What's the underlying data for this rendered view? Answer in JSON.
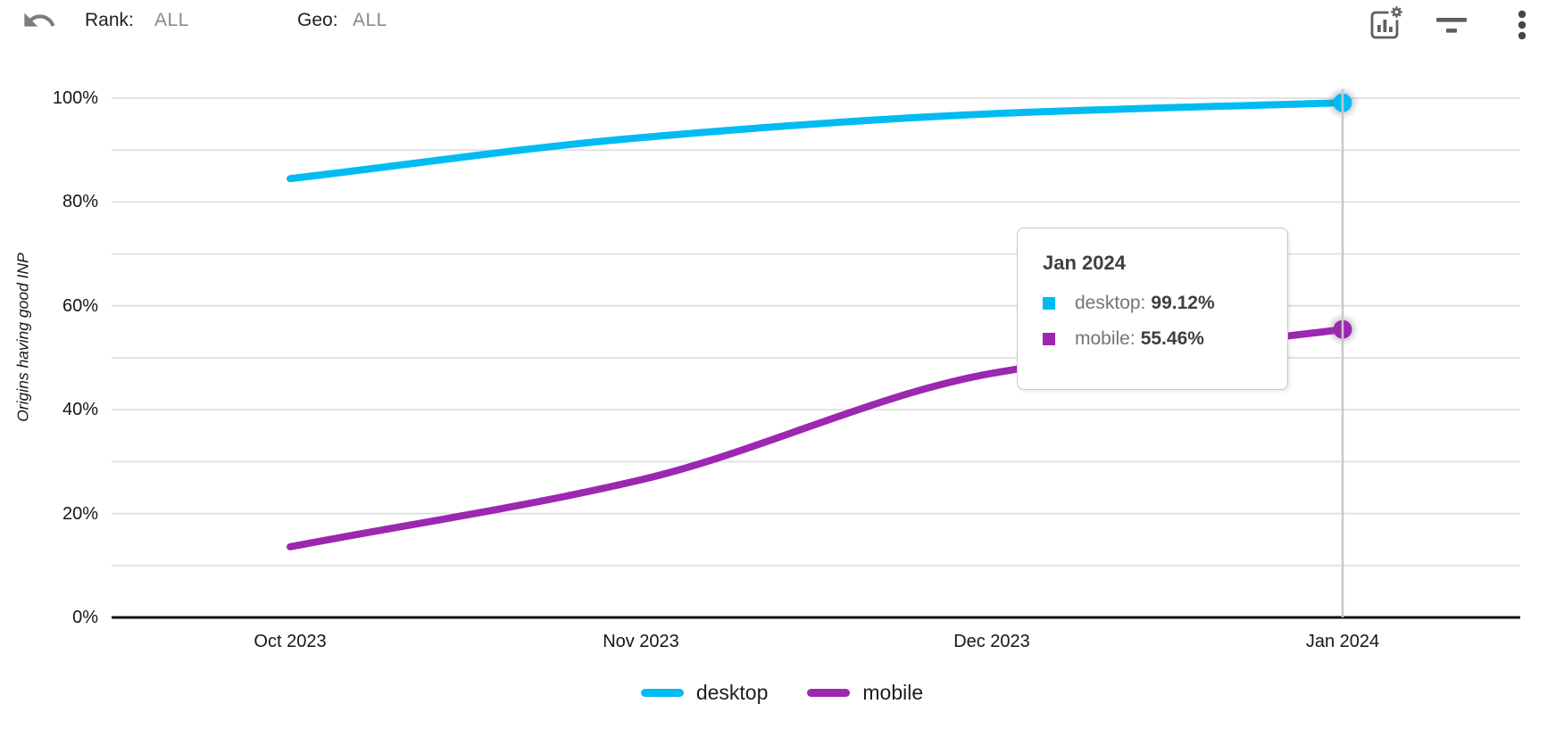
{
  "toolbar": {
    "filters": [
      {
        "label": "Rank:",
        "value": "ALL"
      },
      {
        "label": "Geo:",
        "value": "ALL"
      }
    ],
    "actions": {
      "undo": "undo",
      "chart_settings": "chart-settings",
      "filter": "filter",
      "more": "more-options"
    }
  },
  "chart_data": {
    "type": "line",
    "title": "",
    "xlabel": "",
    "ylabel": "Origins having good INP",
    "categories": [
      "Oct 2023",
      "Nov 2023",
      "Dec 2023",
      "Jan 2024"
    ],
    "series": [
      {
        "name": "desktop",
        "color": "#00bcf2",
        "values": [
          84.5,
          92.4,
          97.0,
          99.12
        ]
      },
      {
        "name": "mobile",
        "color": "#9c27b0",
        "values": [
          13.6,
          26.5,
          47.0,
          55.46
        ]
      }
    ],
    "ylim": [
      0,
      100
    ],
    "y_ticks": [
      "100%",
      "80%",
      "60%",
      "40%",
      "20%",
      "0%"
    ],
    "y_tick_values": [
      100,
      80,
      60,
      40,
      20,
      0
    ],
    "grid": true,
    "legend_position": "bottom",
    "highlight": {
      "category": "Jan 2024",
      "index": 3,
      "crosshair": true
    }
  },
  "tooltip": {
    "title": "Jan 2024",
    "rows": [
      {
        "label": "desktop:",
        "value": "99.12%",
        "color": "#00bcf2"
      },
      {
        "label": "mobile:",
        "value": "55.46%",
        "color": "#9c27b0"
      }
    ]
  },
  "legend": {
    "items": [
      {
        "label": "desktop",
        "color": "#00bcf2"
      },
      {
        "label": "mobile",
        "color": "#9c27b0"
      }
    ]
  },
  "colors": {
    "gridline": "#e2e2e2",
    "axis": "#111111",
    "crosshair": "#c8c8c8",
    "icon_gray": "#5f5f5f"
  }
}
